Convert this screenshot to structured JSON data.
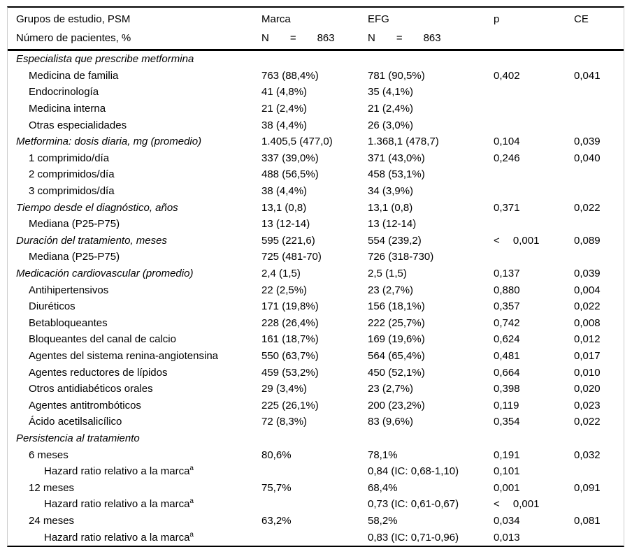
{
  "table": {
    "header": {
      "row1": {
        "label": "Grupos de estudio, PSM",
        "marca": "Marca",
        "efg": "EFG",
        "p": "p",
        "ce": "CE"
      },
      "row2": {
        "label": "Número de pacientes, %",
        "marca": "N  =  863",
        "efg": "N  =  863",
        "p": "",
        "ce": ""
      }
    },
    "rows": [
      {
        "label": "Especialista que prescribe metformina",
        "indent": 0,
        "italic": true,
        "marca": "",
        "efg": "",
        "p": "",
        "ce": ""
      },
      {
        "label": "Medicina de familia",
        "indent": 1,
        "italic": false,
        "marca": "763 (88,4%)",
        "efg": "781 (90,5%)",
        "p": "0,402",
        "ce": "0,041"
      },
      {
        "label": "Endocrinología",
        "indent": 1,
        "italic": false,
        "marca": "41 (4,8%)",
        "efg": "35 (4,1%)",
        "p": "",
        "ce": ""
      },
      {
        "label": "Medicina interna",
        "indent": 1,
        "italic": false,
        "marca": "21 (2,4%)",
        "efg": "21 (2,4%)",
        "p": "",
        "ce": ""
      },
      {
        "label": "Otras especialidades",
        "indent": 1,
        "italic": false,
        "marca": "38 (4,4%)",
        "efg": "26 (3,0%)",
        "p": "",
        "ce": ""
      },
      {
        "label": "Metformina: dosis diaria, mg (promedio)",
        "indent": 0,
        "italic": true,
        "marca": "1.405,5 (477,0)",
        "efg": "1.368,1 (478,7)",
        "p": "0,104",
        "ce": "0,039"
      },
      {
        "label": "1 comprimido/día",
        "indent": 1,
        "italic": false,
        "marca": "337 (39,0%)",
        "efg": "371 (43,0%)",
        "p": "0,246",
        "ce": "0,040"
      },
      {
        "label": "2 comprimidos/día",
        "indent": 1,
        "italic": false,
        "marca": "488 (56,5%)",
        "efg": "458 (53,1%)",
        "p": "",
        "ce": ""
      },
      {
        "label": "3 comprimidos/día",
        "indent": 1,
        "italic": false,
        "marca": "38 (4,4%)",
        "efg": "34 (3,9%)",
        "p": "",
        "ce": ""
      },
      {
        "label": "Tiempo desde el diagnóstico, años",
        "indent": 0,
        "italic": true,
        "marca": "13,1 (0,8)",
        "efg": "13,1 (0,8)",
        "p": "0,371",
        "ce": "0,022"
      },
      {
        "label": "Mediana (P25-P75)",
        "indent": 1,
        "italic": false,
        "marca": "13 (12-14)",
        "efg": "13 (12-14)",
        "p": "",
        "ce": ""
      },
      {
        "label": "Duración del tratamiento, meses",
        "indent": 0,
        "italic": true,
        "marca": "595 (221,6)",
        "efg": "554 (239,2)",
        "p": "<  0,001",
        "ce": "0,089"
      },
      {
        "label": "Mediana (P25-P75)",
        "indent": 1,
        "italic": false,
        "marca": "725 (481-70)",
        "efg": "726 (318-730)",
        "p": "",
        "ce": ""
      },
      {
        "label": "Medicación cardiovascular (promedio)",
        "indent": 0,
        "italic": true,
        "marca": "2,4 (1,5)",
        "efg": "2,5 (1,5)",
        "p": "0,137",
        "ce": "0,039"
      },
      {
        "label": "Antihipertensivos",
        "indent": 1,
        "italic": false,
        "marca": "22 (2,5%)",
        "efg": "23 (2,7%)",
        "p": "0,880",
        "ce": "0,004"
      },
      {
        "label": "Diuréticos",
        "indent": 1,
        "italic": false,
        "marca": "171 (19,8%)",
        "efg": "156 (18,1%)",
        "p": "0,357",
        "ce": "0,022"
      },
      {
        "label": "Betabloqueantes",
        "indent": 1,
        "italic": false,
        "marca": "228 (26,4%)",
        "efg": "222 (25,7%)",
        "p": "0,742",
        "ce": "0,008"
      },
      {
        "label": "Bloqueantes del canal de calcio",
        "indent": 1,
        "italic": false,
        "marca": "161 (18,7%)",
        "efg": "169 (19,6%)",
        "p": "0,624",
        "ce": "0,012"
      },
      {
        "label": "Agentes del sistema renina-angiotensina",
        "indent": 1,
        "italic": false,
        "marca": "550 (63,7%)",
        "efg": "564 (65,4%)",
        "p": "0,481",
        "ce": "0,017"
      },
      {
        "label": "Agentes reductores de lípidos",
        "indent": 1,
        "italic": false,
        "marca": "459 (53,2%)",
        "efg": "450 (52,1%)",
        "p": "0,664",
        "ce": "0,010"
      },
      {
        "label": "Otros antidiabéticos orales",
        "indent": 1,
        "italic": false,
        "marca": "29 (3,4%)",
        "efg": "23 (2,7%)",
        "p": "0,398",
        "ce": "0,020"
      },
      {
        "label": "Agentes antitrombóticos",
        "indent": 1,
        "italic": false,
        "marca": "225 (26,1%)",
        "efg": "200 (23,2%)",
        "p": "0,119",
        "ce": "0,023"
      },
      {
        "label": "Ácido acetilsalicílico",
        "indent": 1,
        "italic": false,
        "marca": "72 (8,3%)",
        "efg": "83 (9,6%)",
        "p": "0,354",
        "ce": "0,022"
      },
      {
        "label": "Persistencia al tratamiento",
        "indent": 0,
        "italic": true,
        "marca": "",
        "efg": "",
        "p": "",
        "ce": ""
      },
      {
        "label": "6 meses",
        "indent": 1,
        "italic": false,
        "marca": "80,6%",
        "efg": "78,1%",
        "p": "0,191",
        "ce": "0,032"
      },
      {
        "label": "Hazard ratio relativo a la marca",
        "sup": "a",
        "indent": 2,
        "italic": false,
        "marca": "",
        "efg": "0,84 (IC: 0,68-1,10)",
        "p": "0,101",
        "ce": ""
      },
      {
        "label": "12 meses",
        "indent": 1,
        "italic": false,
        "marca": "75,7%",
        "efg": "68,4%",
        "p": "0,001",
        "ce": "0,091"
      },
      {
        "label": "Hazard ratio relativo a la marca",
        "sup": "a",
        "indent": 2,
        "italic": false,
        "marca": "",
        "efg": "0,73 (IC: 0,61-0,67)",
        "p": "<  0,001",
        "ce": ""
      },
      {
        "label": "24 meses",
        "indent": 1,
        "italic": false,
        "marca": "63,2%",
        "efg": "58,2%",
        "p": "0,034",
        "ce": "0,081"
      },
      {
        "label": "Hazard ratio relativo a la marca",
        "sup": "a",
        "indent": 2,
        "italic": false,
        "marca": "",
        "efg": "0,83 (IC: 0,71-0,96)",
        "p": "0,013",
        "ce": ""
      }
    ]
  }
}
